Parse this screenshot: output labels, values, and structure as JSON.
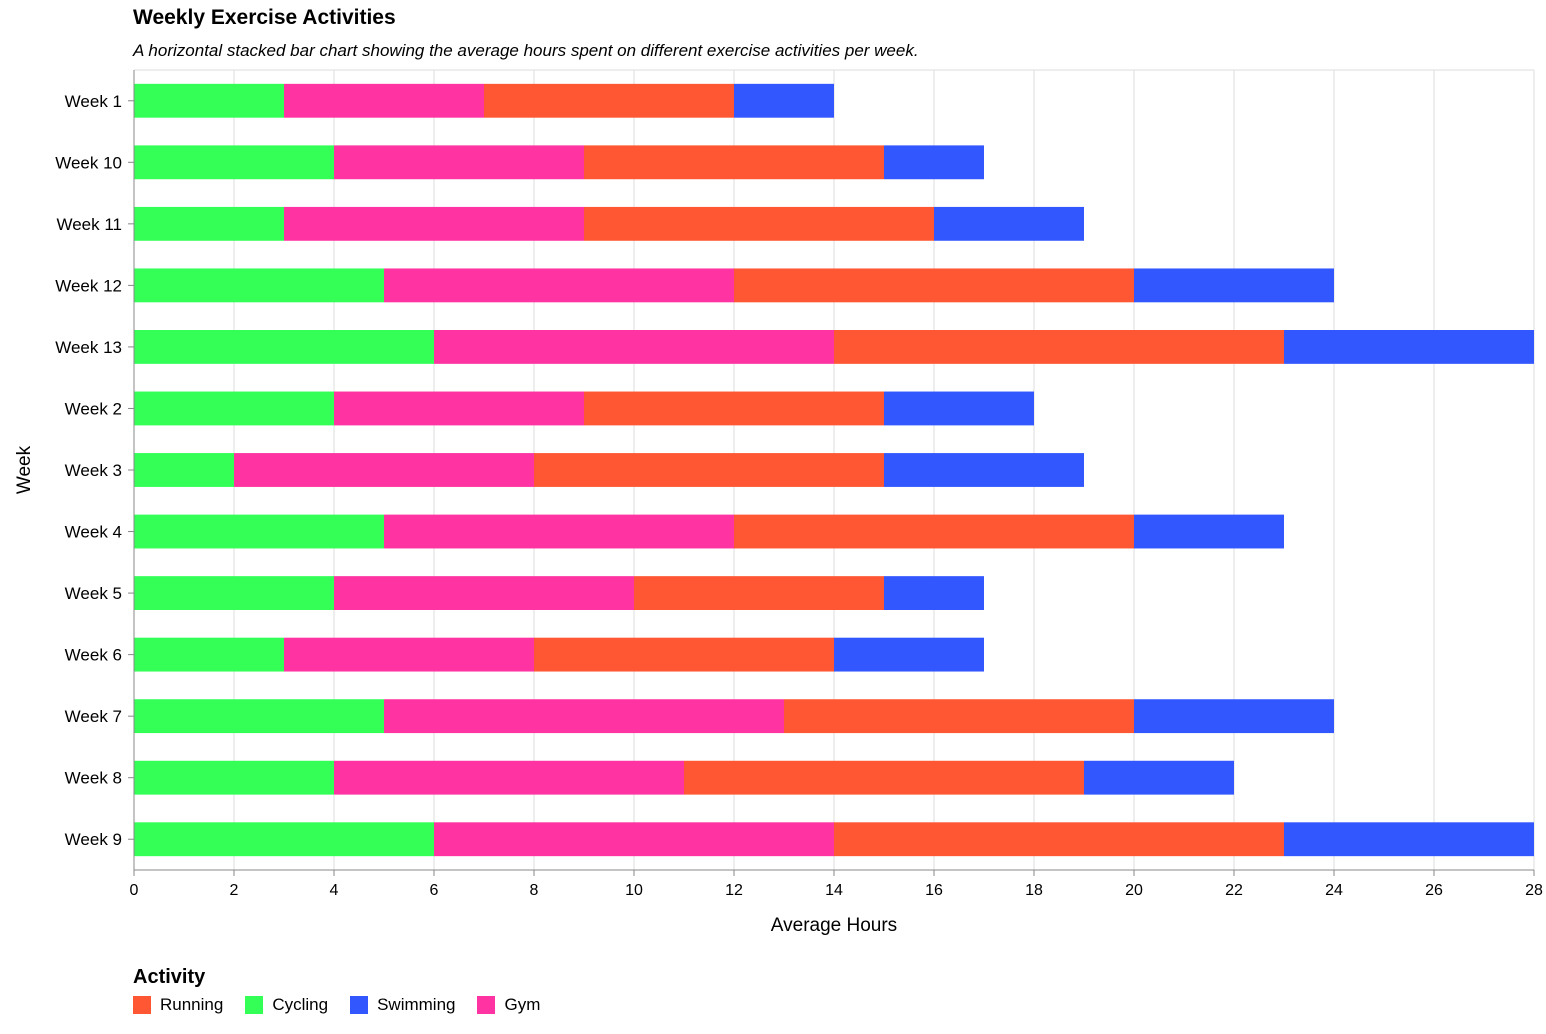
{
  "chart_data": {
    "type": "bar",
    "orientation": "horizontal",
    "stacked": true,
    "title": "Weekly Exercise Activities",
    "subtitle": "A horizontal stacked bar chart showing the average hours spent on different exercise activities per week.",
    "xlabel": "Average Hours",
    "ylabel": "Week",
    "xlim": [
      0,
      28
    ],
    "x_ticks": [
      0,
      2,
      4,
      6,
      8,
      10,
      12,
      14,
      16,
      18,
      20,
      22,
      24,
      26,
      28
    ],
    "grid": true,
    "legend_title": "Activity",
    "legend_position": "bottom-left",
    "categories": [
      "Week 1",
      "Week 10",
      "Week 11",
      "Week 12",
      "Week 13",
      "Week 2",
      "Week 3",
      "Week 4",
      "Week 5",
      "Week 6",
      "Week 7",
      "Week 8",
      "Week 9"
    ],
    "stack_order": [
      "Cycling",
      "Gym",
      "Running",
      "Swimming"
    ],
    "series": [
      {
        "name": "Running",
        "color": "#ff5733",
        "values": [
          5,
          6,
          7,
          8,
          9,
          6,
          7,
          8,
          5,
          6,
          7,
          8,
          9
        ]
      },
      {
        "name": "Cycling",
        "color": "#33ff57",
        "values": [
          3,
          4,
          3,
          5,
          6,
          4,
          2,
          5,
          4,
          3,
          5,
          4,
          6
        ]
      },
      {
        "name": "Swimming",
        "color": "#3357ff",
        "values": [
          2,
          2,
          3,
          4,
          5,
          3,
          4,
          3,
          2,
          3,
          4,
          3,
          5
        ]
      },
      {
        "name": "Gym",
        "color": "#ff33a1",
        "values": [
          4,
          5,
          6,
          7,
          8,
          5,
          6,
          7,
          6,
          5,
          8,
          7,
          8
        ]
      }
    ]
  }
}
